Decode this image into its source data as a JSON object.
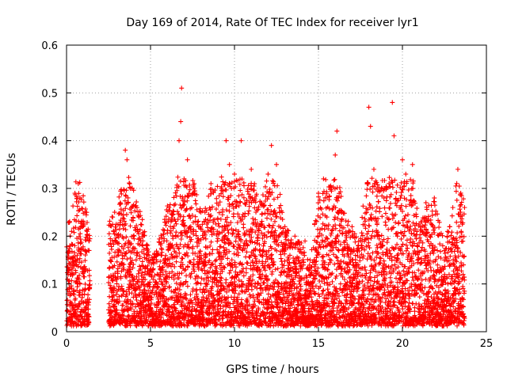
{
  "chart_data": {
    "type": "scatter",
    "title": "Day 169 of 2014, Rate Of TEC Index for receiver lyr1",
    "xlabel": "GPS time / hours",
    "ylabel": "ROTI / TECUs",
    "xlim": [
      0,
      25
    ],
    "ylim": [
      0,
      0.6
    ],
    "xticks": [
      0,
      5,
      10,
      15,
      20,
      25
    ],
    "xtick_labels": [
      "0",
      "5",
      "10",
      "15",
      "20",
      "25"
    ],
    "yticks": [
      0,
      0.1,
      0.2,
      0.3,
      0.4,
      0.5,
      0.6
    ],
    "ytick_labels": [
      "0",
      "0.1",
      "0.2",
      "0.3",
      "0.4",
      "0.5",
      "0.6"
    ],
    "grid": true,
    "marker": "+",
    "color": "#ff0000",
    "series": [
      {
        "name": "lyr1",
        "envelope": [
          {
            "x": 0.0,
            "y": 0.23
          },
          {
            "x": 0.3,
            "y": 0.24
          },
          {
            "x": 0.5,
            "y": 0.31
          },
          {
            "x": 0.8,
            "y": 0.32
          },
          {
            "x": 1.2,
            "y": 0.25
          },
          {
            "x": 1.4,
            "y": 0.19
          },
          {
            "x": 2.5,
            "y": 0.23
          },
          {
            "x": 3.0,
            "y": 0.27
          },
          {
            "x": 3.5,
            "y": 0.38
          },
          {
            "x": 4.0,
            "y": 0.3
          },
          {
            "x": 4.5,
            "y": 0.24
          },
          {
            "x": 5.0,
            "y": 0.15
          },
          {
            "x": 5.5,
            "y": 0.19
          },
          {
            "x": 6.0,
            "y": 0.26
          },
          {
            "x": 6.5,
            "y": 0.3
          },
          {
            "x": 6.8,
            "y": 0.51
          },
          {
            "x": 7.2,
            "y": 0.36
          },
          {
            "x": 7.6,
            "y": 0.31
          },
          {
            "x": 8.0,
            "y": 0.25
          },
          {
            "x": 8.5,
            "y": 0.31
          },
          {
            "x": 9.0,
            "y": 0.3
          },
          {
            "x": 9.5,
            "y": 0.4
          },
          {
            "x": 10.0,
            "y": 0.33
          },
          {
            "x": 10.5,
            "y": 0.32
          },
          {
            "x": 11.0,
            "y": 0.34
          },
          {
            "x": 11.5,
            "y": 0.27
          },
          {
            "x": 12.0,
            "y": 0.33
          },
          {
            "x": 12.5,
            "y": 0.35
          },
          {
            "x": 13.0,
            "y": 0.22
          },
          {
            "x": 13.5,
            "y": 0.2
          },
          {
            "x": 14.0,
            "y": 0.19
          },
          {
            "x": 14.5,
            "y": 0.15
          },
          {
            "x": 15.0,
            "y": 0.29
          },
          {
            "x": 15.5,
            "y": 0.4
          },
          {
            "x": 16.0,
            "y": 0.42
          },
          {
            "x": 16.5,
            "y": 0.25
          },
          {
            "x": 17.0,
            "y": 0.22
          },
          {
            "x": 17.5,
            "y": 0.19
          },
          {
            "x": 18.0,
            "y": 0.47
          },
          {
            "x": 18.5,
            "y": 0.34
          },
          {
            "x": 19.0,
            "y": 0.31
          },
          {
            "x": 19.5,
            "y": 0.48
          },
          {
            "x": 20.0,
            "y": 0.36
          },
          {
            "x": 20.5,
            "y": 0.35
          },
          {
            "x": 21.0,
            "y": 0.23
          },
          {
            "x": 21.5,
            "y": 0.27
          },
          {
            "x": 22.0,
            "y": 0.28
          },
          {
            "x": 22.5,
            "y": 0.18
          },
          {
            "x": 23.0,
            "y": 0.26
          },
          {
            "x": 23.3,
            "y": 0.34
          },
          {
            "x": 23.7,
            "y": 0.26
          }
        ],
        "points": [
          [
            0.1,
            0.12
          ],
          [
            0.2,
            0.18
          ],
          [
            0.3,
            0.21
          ],
          [
            0.4,
            0.08
          ],
          [
            0.5,
            0.29
          ],
          [
            0.6,
            0.14
          ],
          [
            0.7,
            0.31
          ],
          [
            0.8,
            0.1
          ],
          [
            0.9,
            0.22
          ],
          [
            1.0,
            0.06
          ],
          [
            1.1,
            0.17
          ],
          [
            1.2,
            0.25
          ],
          [
            1.3,
            0.09
          ],
          [
            1.35,
            0.19
          ],
          [
            2.6,
            0.15
          ],
          [
            2.8,
            0.21
          ],
          [
            3.0,
            0.04
          ],
          [
            3.2,
            0.27
          ],
          [
            3.4,
            0.13
          ],
          [
            3.5,
            0.38
          ],
          [
            3.6,
            0.36
          ],
          [
            3.8,
            0.3
          ],
          [
            4.0,
            0.09
          ],
          [
            4.3,
            0.24
          ],
          [
            4.6,
            0.05
          ],
          [
            4.9,
            0.12
          ],
          [
            5.2,
            0.15
          ],
          [
            5.5,
            0.08
          ],
          [
            5.8,
            0.19
          ],
          [
            6.1,
            0.26
          ],
          [
            6.4,
            0.11
          ],
          [
            6.7,
            0.4
          ],
          [
            6.8,
            0.44
          ],
          [
            6.85,
            0.51
          ],
          [
            7.0,
            0.32
          ],
          [
            7.2,
            0.36
          ],
          [
            7.4,
            0.22
          ],
          [
            7.6,
            0.31
          ],
          [
            7.8,
            0.07
          ],
          [
            8.0,
            0.25
          ],
          [
            8.3,
            0.14
          ],
          [
            8.6,
            0.31
          ],
          [
            8.9,
            0.04
          ],
          [
            9.2,
            0.3
          ],
          [
            9.5,
            0.4
          ],
          [
            9.7,
            0.35
          ],
          [
            10.0,
            0.33
          ],
          [
            10.2,
            0.06
          ],
          [
            10.4,
            0.4
          ],
          [
            10.7,
            0.19
          ],
          [
            11.0,
            0.34
          ],
          [
            11.3,
            0.13
          ],
          [
            11.6,
            0.27
          ],
          [
            11.8,
            0.05
          ],
          [
            12.0,
            0.33
          ],
          [
            12.2,
            0.39
          ],
          [
            12.5,
            0.35
          ],
          [
            12.8,
            0.09
          ],
          [
            13.0,
            0.22
          ],
          [
            13.3,
            0.16
          ],
          [
            13.6,
            0.2
          ],
          [
            13.9,
            0.03
          ],
          [
            14.2,
            0.19
          ],
          [
            14.5,
            0.15
          ],
          [
            14.8,
            0.08
          ],
          [
            15.0,
            0.29
          ],
          [
            15.3,
            0.32
          ],
          [
            15.5,
            0.24
          ],
          [
            15.8,
            0.18
          ],
          [
            16.0,
            0.37
          ],
          [
            16.1,
            0.42
          ],
          [
            16.4,
            0.25
          ],
          [
            16.7,
            0.06
          ],
          [
            17.0,
            0.22
          ],
          [
            17.3,
            0.12
          ],
          [
            17.6,
            0.19
          ],
          [
            17.9,
            0.31
          ],
          [
            18.0,
            0.47
          ],
          [
            18.1,
            0.43
          ],
          [
            18.3,
            0.34
          ],
          [
            18.6,
            0.1
          ],
          [
            18.9,
            0.28
          ],
          [
            19.2,
            0.31
          ],
          [
            19.4,
            0.48
          ],
          [
            19.5,
            0.41
          ],
          [
            19.7,
            0.2
          ],
          [
            20.0,
            0.36
          ],
          [
            20.2,
            0.33
          ],
          [
            20.4,
            0.08
          ],
          [
            20.6,
            0.35
          ],
          [
            20.9,
            0.15
          ],
          [
            21.1,
            0.23
          ],
          [
            21.4,
            0.27
          ],
          [
            21.6,
            0.05
          ],
          [
            21.9,
            0.28
          ],
          [
            22.1,
            0.13
          ],
          [
            22.4,
            0.18
          ],
          [
            22.7,
            0.04
          ],
          [
            23.0,
            0.26
          ],
          [
            23.2,
            0.12
          ],
          [
            23.3,
            0.34
          ],
          [
            23.5,
            0.21
          ],
          [
            23.7,
            0.26
          ]
        ]
      }
    ]
  }
}
